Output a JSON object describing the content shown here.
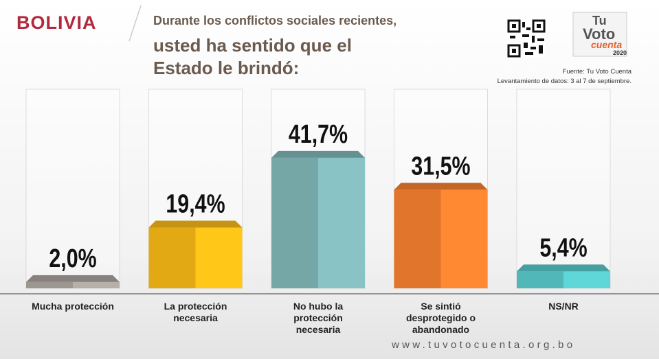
{
  "chart_data": {
    "type": "bar",
    "country": "BOLIVIA",
    "title": "Durante los conflictos sociales recientes,",
    "subtitle": "usted ha sentido que el Estado le brindó:",
    "source": "Fuente: Tu Voto Cuenta",
    "note": "Levantamiento de datos: 3 al 7 de septiembre.",
    "website": "www.tuvotocuenta.org.bo",
    "logo": {
      "line1": "Tu",
      "line2": "Voto",
      "line3": "cuenta",
      "year": "2020"
    },
    "categories": [
      "Mucha protección",
      "La protección necesaria",
      "No hubo la protección necesaria",
      "Se sintió desprotegido o abandonado",
      "NS/NR"
    ],
    "values": [
      2.0,
      19.4,
      41.7,
      31.5,
      5.4
    ],
    "value_labels": [
      "2,0%",
      "19,4%",
      "41,7%",
      "31,5%",
      "5,4%"
    ],
    "colors": [
      "#a9a39c",
      "#f7b816",
      "#7fb5b6",
      "#f57f2f",
      "#58c7c8"
    ]
  }
}
